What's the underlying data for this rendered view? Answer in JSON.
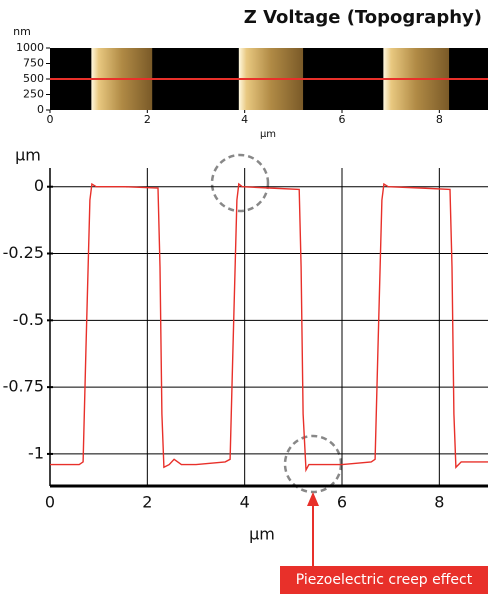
{
  "chart_data": [
    {
      "type": "image",
      "title": "Z Voltage (Topography)",
      "y_label": "nm",
      "x_label": "µm",
      "xlim": [
        0,
        9
      ],
      "xticks": [
        0,
        2,
        4,
        6,
        8
      ],
      "ylim": [
        0,
        1000
      ],
      "yticks": [
        0,
        250,
        500,
        750,
        1000
      ],
      "profile_line": 500,
      "line_color": "#e8302a",
      "features": [
        [
          0.85,
          2.1
        ],
        [
          3.88,
          5.2
        ],
        [
          6.85,
          8.2
        ]
      ]
    },
    {
      "type": "line",
      "y_label": "µm",
      "x_label": "µm",
      "color": "#e8302a",
      "grid": true,
      "xlim": [
        0,
        9
      ],
      "xticks": [
        0,
        2,
        4,
        6,
        8
      ],
      "ylim": [
        -1.12,
        0.07
      ],
      "yticks": [
        0,
        -0.25,
        -0.5,
        -0.75,
        -1
      ],
      "x": [
        0,
        0.6,
        0.68,
        0.74,
        0.82,
        0.86,
        0.95,
        1.5,
        2.22,
        2.26,
        2.3,
        2.34,
        2.45,
        2.55,
        2.7,
        3.0,
        3.6,
        3.7,
        3.76,
        3.84,
        3.88,
        3.95,
        4.5,
        5.12,
        5.16,
        5.2,
        5.26,
        5.32,
        5.45,
        6.0,
        6.6,
        6.68,
        6.74,
        6.82,
        6.86,
        6.95,
        7.6,
        8.22,
        8.26,
        8.3,
        8.34,
        8.45,
        9
      ],
      "values": [
        -1.04,
        -1.04,
        -1.03,
        -0.6,
        -0.05,
        0.01,
        0.0,
        0.0,
        -0.005,
        -0.3,
        -0.85,
        -1.05,
        -1.04,
        -1.02,
        -1.04,
        -1.04,
        -1.03,
        -1.02,
        -0.6,
        -0.05,
        0.01,
        0.0,
        -0.005,
        -0.01,
        -0.3,
        -0.85,
        -1.06,
        -1.04,
        -1.04,
        -1.04,
        -1.03,
        -1.02,
        -0.6,
        -0.05,
        0.01,
        0.0,
        -0.005,
        -0.01,
        -0.3,
        -0.85,
        -1.05,
        -1.03,
        -1.03
      ],
      "annotation": "Piezoelectric creep effect"
    }
  ]
}
